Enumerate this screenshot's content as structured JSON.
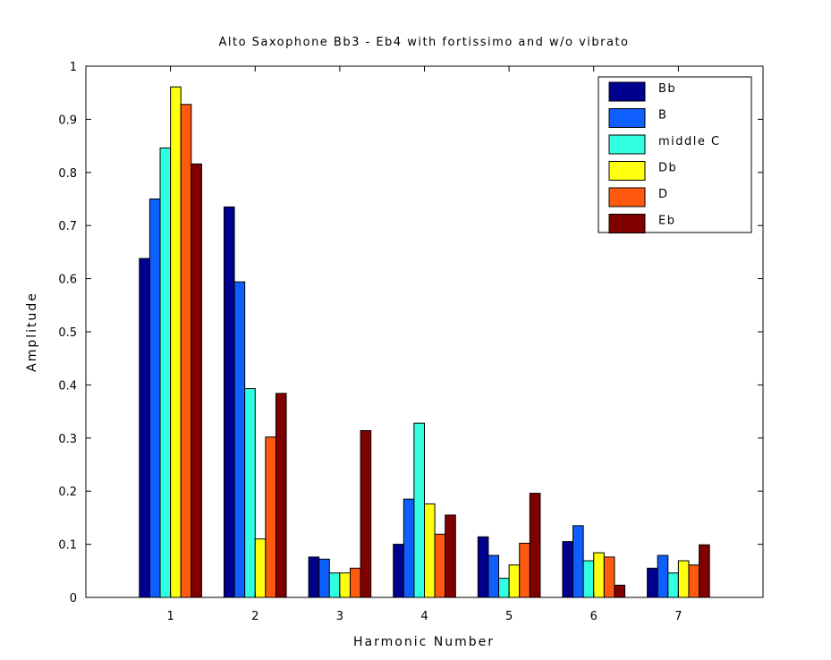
{
  "chart_data": {
    "type": "bar",
    "title": "Alto Saxophone Bb3 - Eb4 with fortissimo and w/o vibrato",
    "xlabel": "Harmonic Number",
    "ylabel": "Amplitude",
    "categories": [
      "1",
      "2",
      "3",
      "4",
      "5",
      "6",
      "7"
    ],
    "ylim": [
      0,
      1
    ],
    "yticks": [
      "0",
      "0.1",
      "0.2",
      "0.3",
      "0.4",
      "0.5",
      "0.6",
      "0.7",
      "0.8",
      "0.9",
      "1"
    ],
    "grid": false,
    "legend_position": "top-right",
    "series": [
      {
        "name": "Bb",
        "color": "#00008f",
        "values": [
          0.638,
          0.735,
          0.076,
          0.1,
          0.114,
          0.105,
          0.055
        ]
      },
      {
        "name": "B",
        "color": "#0f5fff",
        "values": [
          0.75,
          0.594,
          0.072,
          0.185,
          0.079,
          0.135,
          0.079
        ]
      },
      {
        "name": "middle C",
        "color": "#30ffe0",
        "values": [
          0.846,
          0.393,
          0.046,
          0.328,
          0.036,
          0.069,
          0.046
        ]
      },
      {
        "name": "Db",
        "color": "#ffff10",
        "values": [
          0.961,
          0.11,
          0.046,
          0.176,
          0.061,
          0.084,
          0.069
        ]
      },
      {
        "name": "D",
        "color": "#ff5a0f",
        "values": [
          0.928,
          0.302,
          0.055,
          0.119,
          0.102,
          0.076,
          0.061
        ]
      },
      {
        "name": "Eb",
        "color": "#800000",
        "values": [
          0.816,
          0.384,
          0.314,
          0.155,
          0.196,
          0.023,
          0.099
        ]
      }
    ]
  }
}
